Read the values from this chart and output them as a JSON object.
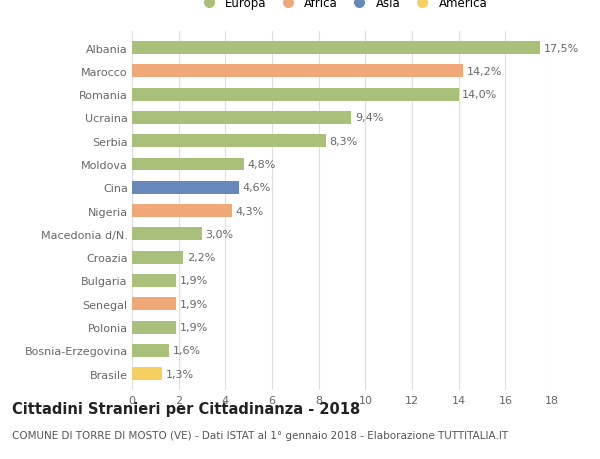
{
  "countries": [
    "Albania",
    "Marocco",
    "Romania",
    "Ucraina",
    "Serbia",
    "Moldova",
    "Cina",
    "Nigeria",
    "Macedonia d/N.",
    "Croazia",
    "Bulgaria",
    "Senegal",
    "Polonia",
    "Bosnia-Erzegovina",
    "Brasile"
  ],
  "values": [
    17.5,
    14.2,
    14.0,
    9.4,
    8.3,
    4.8,
    4.6,
    4.3,
    3.0,
    2.2,
    1.9,
    1.9,
    1.9,
    1.6,
    1.3
  ],
  "labels": [
    "17,5%",
    "14,2%",
    "14,0%",
    "9,4%",
    "8,3%",
    "4,8%",
    "4,6%",
    "4,3%",
    "3,0%",
    "2,2%",
    "1,9%",
    "1,9%",
    "1,9%",
    "1,6%",
    "1,3%"
  ],
  "continents": [
    "Europa",
    "Africa",
    "Europa",
    "Europa",
    "Europa",
    "Europa",
    "Asia",
    "Africa",
    "Europa",
    "Europa",
    "Europa",
    "Africa",
    "Europa",
    "Europa",
    "America"
  ],
  "colors": {
    "Europa": "#a8c07a",
    "Africa": "#f0a878",
    "Asia": "#6688bb",
    "America": "#f5d060"
  },
  "legend_order": [
    "Europa",
    "Africa",
    "Asia",
    "America"
  ],
  "title": "Cittadini Stranieri per Cittadinanza - 2018",
  "subtitle": "COMUNE DI TORRE DI MOSTO (VE) - Dati ISTAT al 1° gennaio 2018 - Elaborazione TUTTITALIA.IT",
  "xlim": [
    0,
    18
  ],
  "xticks": [
    0,
    2,
    4,
    6,
    8,
    10,
    12,
    14,
    16,
    18
  ],
  "background_color": "#ffffff",
  "grid_color": "#dddddd",
  "bar_height": 0.55,
  "label_fontsize": 8,
  "tick_fontsize": 8,
  "title_fontsize": 10.5,
  "subtitle_fontsize": 7.5
}
